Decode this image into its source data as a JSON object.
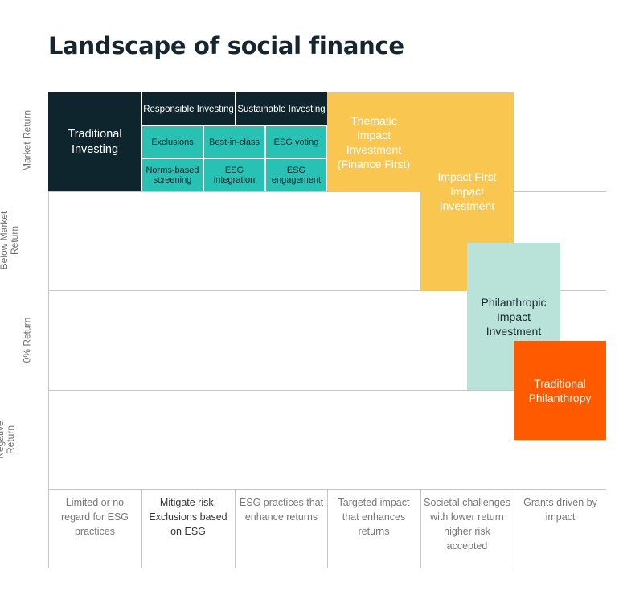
{
  "title": "Landscape of social finance",
  "y_axis": {
    "levels": [
      "Market Return",
      "Below Market Return",
      "0% Return",
      "Negative Return"
    ]
  },
  "x_axis": {
    "categories": [
      "Limited or no regard for ESG practices",
      "Mitigate risk. Exclusions based on ESG",
      "ESG practices that enhance returns",
      "Targeted impact that enhances returns",
      "Societal challenges with lower return higher risk accepted",
      "Grants driven by impact"
    ]
  },
  "blocks": {
    "traditional_investing": "Traditional Investing",
    "responsible_investing": "Responsible Investing",
    "sustainable_investing": "Sustainable Investing",
    "exclusions": "Exclusions",
    "best_in_class": "Best-in-class",
    "esg_voting": "ESG voting",
    "norms_based_screening": "Norms-based screening",
    "esg_integration": "ESG integration",
    "esg_engagement": "ESG engagement",
    "thematic_impact": "Thematic Impact Investment (Finance First)",
    "impact_first": "Impact First Impact Investment",
    "philanthropic_impact": "Philanthropic Impact Investment",
    "traditional_philanthropy": "Traditional Philanthropy"
  },
  "colors": {
    "dark": "#0f252e",
    "teal": "#28c2b4",
    "yellow": "#f9c74f",
    "mint": "#b9e3d9",
    "orange": "#ff5a00"
  }
}
